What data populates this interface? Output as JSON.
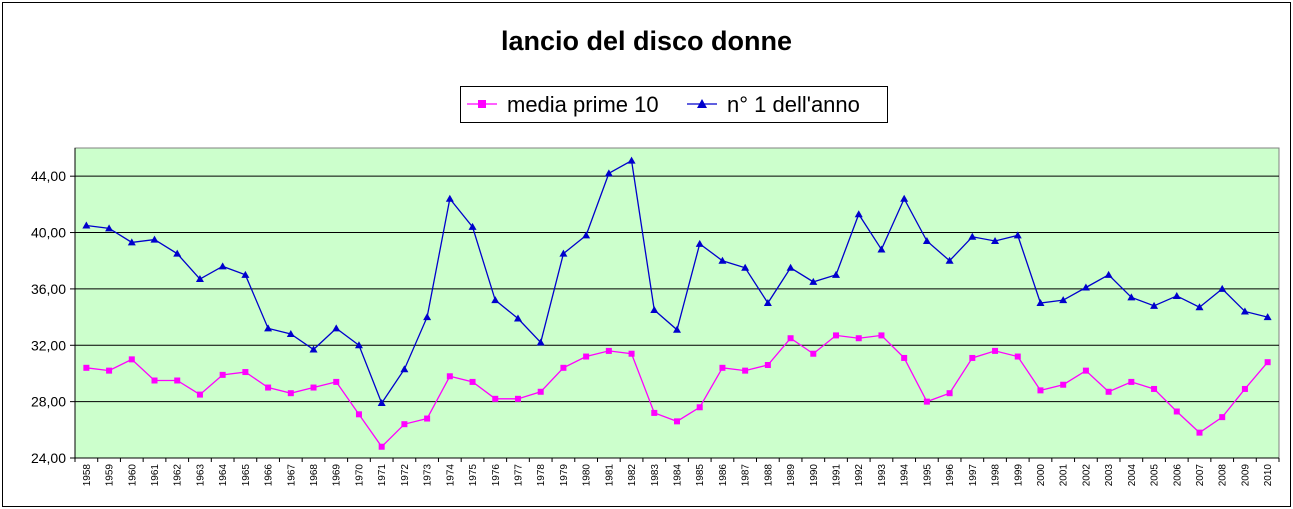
{
  "chart_data": {
    "type": "line",
    "title": "lancio del disco donne",
    "xlabel": "",
    "ylabel": "",
    "ylim": [
      24,
      46
    ],
    "yticks": [
      "24,00",
      "28,00",
      "32,00",
      "36,00",
      "40,00",
      "44,00"
    ],
    "grid": true,
    "legend_position": "top",
    "categories": [
      "1958",
      "1959",
      "1960",
      "1961",
      "1962",
      "1963",
      "1964",
      "1965",
      "1966",
      "1967",
      "1968",
      "1969",
      "1970",
      "1971",
      "1972",
      "1973",
      "1974",
      "1975",
      "1976",
      "1977",
      "1978",
      "1979",
      "1980",
      "1981",
      "1982",
      "1983",
      "1984",
      "1985",
      "1986",
      "1987",
      "1988",
      "1989",
      "1990",
      "1991",
      "1992",
      "1993",
      "1994",
      "1995",
      "1996",
      "1997",
      "1998",
      "1999",
      "2000",
      "2001",
      "2002",
      "2003",
      "2004",
      "2005",
      "2006",
      "2007",
      "2008",
      "2009",
      "2010"
    ],
    "series": [
      {
        "name": "media prime 10",
        "color": "#ff00ff",
        "marker": "square",
        "values": [
          30.4,
          30.2,
          31.0,
          29.5,
          29.5,
          28.5,
          29.9,
          30.1,
          29.0,
          28.6,
          29.0,
          29.4,
          27.1,
          24.8,
          26.4,
          26.8,
          29.8,
          29.4,
          28.2,
          28.2,
          28.7,
          30.4,
          31.2,
          31.6,
          31.4,
          27.2,
          26.6,
          27.6,
          30.4,
          30.2,
          30.6,
          32.5,
          31.4,
          32.7,
          32.5,
          32.7,
          31.1,
          28.0,
          28.6,
          31.1,
          31.6,
          31.2,
          28.8,
          29.2,
          30.2,
          28.7,
          29.4,
          28.9,
          27.3,
          25.8,
          26.9,
          28.9,
          30.8
        ]
      },
      {
        "name": "n° 1 dell'anno",
        "color": "#0000cc",
        "marker": "triangle",
        "values": [
          40.5,
          40.3,
          39.3,
          39.5,
          38.5,
          36.7,
          37.6,
          37.0,
          33.2,
          32.8,
          31.7,
          33.2,
          32.0,
          27.9,
          30.3,
          34.0,
          42.4,
          40.4,
          35.2,
          33.9,
          32.2,
          38.5,
          39.8,
          44.2,
          45.1,
          34.5,
          33.1,
          39.2,
          38.0,
          37.5,
          35.0,
          37.5,
          36.5,
          37.0,
          41.3,
          38.8,
          42.4,
          39.4,
          38.0,
          39.7,
          39.4,
          39.8,
          35.0,
          35.2,
          36.1,
          37.0,
          35.4,
          34.8,
          35.5,
          34.7,
          36.0,
          34.4,
          34.0
        ]
      }
    ]
  }
}
